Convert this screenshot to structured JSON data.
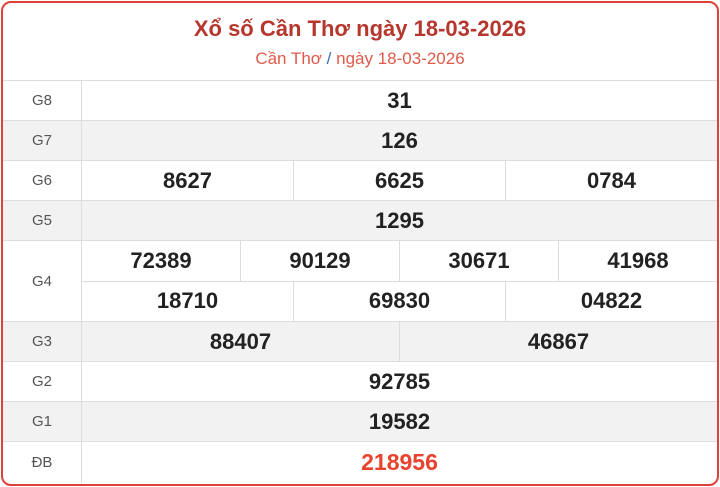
{
  "header": {
    "title": "Xổ số Cần Thơ ngày 18-03-2026",
    "breadcrumb_place": "Cần Thơ",
    "breadcrumb_sep": "/",
    "breadcrumb_date": "ngày 18-03-2026"
  },
  "colors": {
    "border": "#e0403a",
    "title": "#b5372d",
    "special": "#e8432e",
    "stripe": "#f2f2f2"
  },
  "prizes": {
    "g8": {
      "label": "G8",
      "values": [
        "31"
      ]
    },
    "g7": {
      "label": "G7",
      "values": [
        "126"
      ]
    },
    "g6": {
      "label": "G6",
      "values": [
        "8627",
        "6625",
        "0784"
      ]
    },
    "g5": {
      "label": "G5",
      "values": [
        "1295"
      ]
    },
    "g4": {
      "label": "G4",
      "values": [
        "72389",
        "90129",
        "30671",
        "41968",
        "18710",
        "69830",
        "04822"
      ]
    },
    "g3": {
      "label": "G3",
      "values": [
        "88407",
        "46867"
      ]
    },
    "g2": {
      "label": "G2",
      "values": [
        "92785"
      ]
    },
    "g1": {
      "label": "G1",
      "values": [
        "19582"
      ]
    },
    "db": {
      "label": "ĐB",
      "values": [
        "218956"
      ]
    }
  }
}
